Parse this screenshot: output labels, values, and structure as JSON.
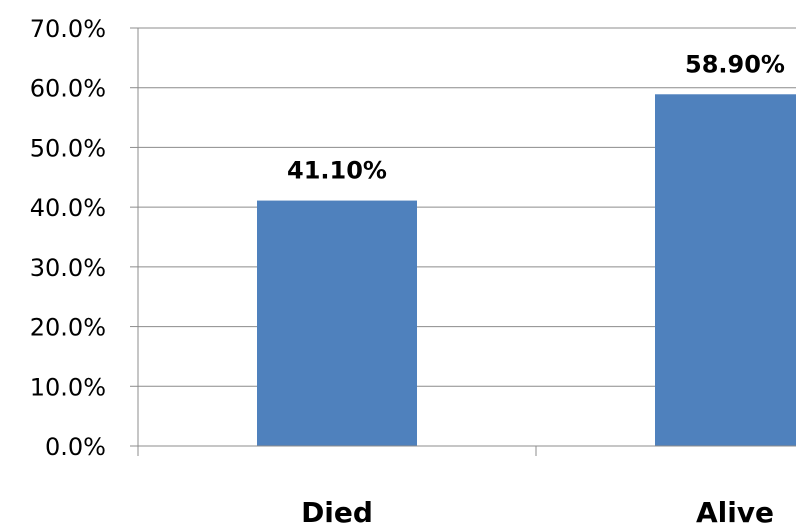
{
  "chart_data": {
    "type": "bar",
    "categories": [
      "Died",
      "Alive"
    ],
    "values": [
      41.1,
      58.9
    ],
    "data_labels": [
      "41.10%",
      "58.90%"
    ],
    "title": "",
    "xlabel": "",
    "ylabel": "",
    "ylim": [
      0,
      70
    ],
    "yticks": [
      0,
      10,
      20,
      30,
      40,
      50,
      60,
      70
    ],
    "ytick_labels": [
      "0.0%",
      "10.0%",
      "20.0%",
      "30.0%",
      "40.0%",
      "50.0%",
      "60.0%",
      "70.0%"
    ],
    "grid": true,
    "legend": "none",
    "bar_color": "#4f81bd"
  }
}
